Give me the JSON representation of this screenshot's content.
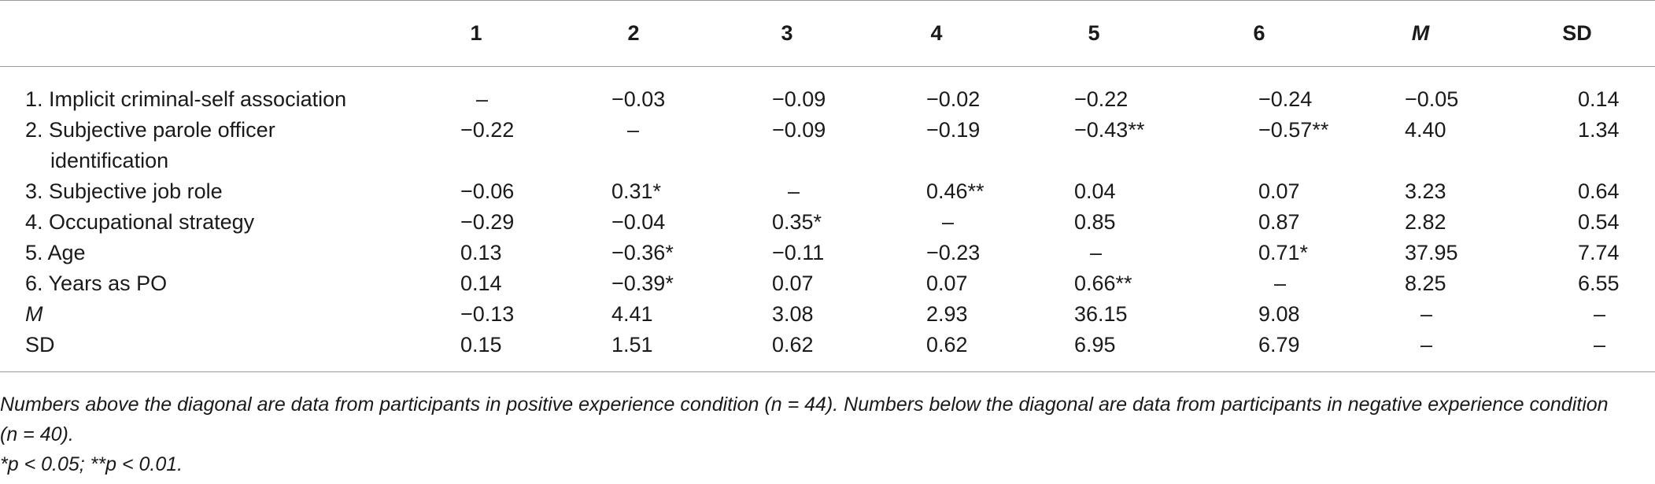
{
  "table": {
    "headers": [
      "",
      "1",
      "2",
      "3",
      "4",
      "5",
      "6",
      "M",
      "SD"
    ],
    "rows": [
      {
        "label": "1. Implicit criminal-self association",
        "label2": "",
        "italic": false,
        "cells": [
          "–",
          "−0.03",
          "−0.09",
          "−0.02",
          "−0.22",
          "−0.24",
          "−0.05",
          "0.14"
        ]
      },
      {
        "label": "2. Subjective parole officer",
        "label2": "identification",
        "italic": false,
        "cells": [
          "−0.22",
          "–",
          "−0.09",
          "−0.19",
          "−0.43**",
          "−0.57**",
          "4.40",
          "1.34"
        ]
      },
      {
        "label": "3. Subjective job role",
        "label2": "",
        "italic": false,
        "cells": [
          "−0.06",
          "0.31*",
          "–",
          "0.46**",
          "0.04",
          "0.07",
          "3.23",
          "0.64"
        ]
      },
      {
        "label": "4. Occupational strategy",
        "label2": "",
        "italic": false,
        "cells": [
          "−0.29",
          "−0.04",
          "0.35*",
          "–",
          "0.85",
          "0.87",
          "2.82",
          "0.54"
        ]
      },
      {
        "label": "5. Age",
        "label2": "",
        "italic": false,
        "cells": [
          "0.13",
          "−0.36*",
          "−0.11",
          "−0.23",
          "–",
          "0.71*",
          "37.95",
          "7.74"
        ]
      },
      {
        "label": "6. Years as PO",
        "label2": "",
        "italic": false,
        "cells": [
          "0.14",
          "−0.39*",
          "0.07",
          "0.07",
          "0.66**",
          "–",
          "8.25",
          "6.55"
        ]
      },
      {
        "label": "M",
        "label2": "",
        "italic": true,
        "cells": [
          "−0.13",
          "4.41",
          "3.08",
          "2.93",
          "36.15",
          "9.08",
          "–",
          "–"
        ]
      },
      {
        "label": "SD",
        "label2": "",
        "italic": false,
        "cells": [
          "0.15",
          "1.51",
          "0.62",
          "0.62",
          "6.95",
          "6.79",
          "–",
          "–"
        ]
      }
    ]
  },
  "notes": {
    "line1": "Numbers above the diagonal are data from participants in positive experience condition (n = 44). Numbers below the diagonal are data from participants in negative experience condition (n = 40).",
    "line2": "*p < 0.05; **p < 0.01."
  }
}
